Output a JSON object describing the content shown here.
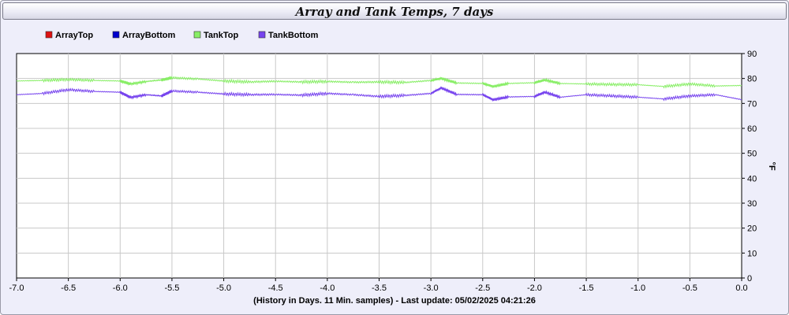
{
  "chart_data": {
    "type": "line",
    "title": "Array and Tank Temps, 7 days",
    "xlabel": "(History in Days. 11 Min. samples) - Last update: 05/02/2025 04:21:26",
    "ylabel": "°F",
    "xlim": [
      -7.0,
      0.0
    ],
    "ylim": [
      0,
      90
    ],
    "x_ticks": [
      -7.0,
      -6.5,
      -6.0,
      -5.5,
      -5.0,
      -4.5,
      -4.0,
      -3.5,
      -3.0,
      -2.5,
      -2.0,
      -1.5,
      -1.0,
      -0.5,
      0.0
    ],
    "x_tick_labels": [
      "-7.0",
      "-6.5",
      "-6.0",
      "-5.5",
      "-5.0",
      "-4.5",
      "-4.0",
      "-3.5",
      "-3.0",
      "-2.5",
      "-2.0",
      "-1.5",
      "-1.0",
      "-0.5",
      "0.0"
    ],
    "y_ticks": [
      0,
      10,
      20,
      30,
      40,
      50,
      60,
      70,
      80,
      90
    ],
    "y_tick_labels": [
      "0",
      "10",
      "20",
      "30",
      "40",
      "50",
      "60",
      "70",
      "80",
      "90"
    ],
    "grid": true,
    "legend_position": "top-left",
    "series": [
      {
        "name": "ArrayTop",
        "color": "#dd1111",
        "x": [],
        "y": []
      },
      {
        "name": "ArrayBottom",
        "color": "#0000cc",
        "x": [],
        "y": []
      },
      {
        "name": "TankTop",
        "color": "#88ee66",
        "x": [
          -7.0,
          -6.75,
          -6.5,
          -6.25,
          -6.0,
          -5.9,
          -5.75,
          -5.6,
          -5.5,
          -5.25,
          -5.0,
          -4.75,
          -4.5,
          -4.25,
          -4.0,
          -3.75,
          -3.5,
          -3.25,
          -3.0,
          -2.9,
          -2.75,
          -2.5,
          -2.4,
          -2.25,
          -2.0,
          -1.9,
          -1.75,
          -1.5,
          -1.25,
          -1.0,
          -0.75,
          -0.5,
          -0.25,
          0.0
        ],
        "y": [
          79.0,
          79.2,
          79.6,
          79.2,
          79.0,
          77.8,
          78.8,
          79.4,
          80.3,
          79.8,
          79.0,
          78.6,
          78.9,
          78.6,
          78.8,
          78.5,
          78.6,
          78.4,
          79.2,
          80.0,
          78.2,
          78.0,
          76.8,
          78.0,
          78.3,
          79.4,
          78.0,
          77.8,
          77.6,
          77.5,
          76.8,
          77.8,
          77.0,
          77.2
        ]
      },
      {
        "name": "TankBottom",
        "color": "#7744ee",
        "x": [
          -7.0,
          -6.75,
          -6.5,
          -6.25,
          -6.0,
          -5.9,
          -5.75,
          -5.6,
          -5.5,
          -5.25,
          -5.0,
          -4.75,
          -4.5,
          -4.25,
          -4.0,
          -3.75,
          -3.5,
          -3.25,
          -3.0,
          -2.9,
          -2.75,
          -2.5,
          -2.4,
          -2.25,
          -2.0,
          -1.9,
          -1.75,
          -1.5,
          -1.25,
          -1.0,
          -0.75,
          -0.5,
          -0.25,
          0.0
        ],
        "y": [
          73.5,
          74.0,
          75.5,
          74.8,
          74.5,
          72.4,
          73.5,
          73.0,
          75.0,
          74.5,
          73.8,
          73.5,
          73.6,
          73.3,
          74.0,
          73.5,
          72.8,
          73.2,
          74.0,
          76.2,
          73.6,
          73.5,
          71.5,
          72.6,
          72.8,
          74.5,
          72.5,
          73.5,
          73.0,
          72.5,
          71.8,
          73.0,
          73.5,
          71.5
        ]
      }
    ]
  }
}
